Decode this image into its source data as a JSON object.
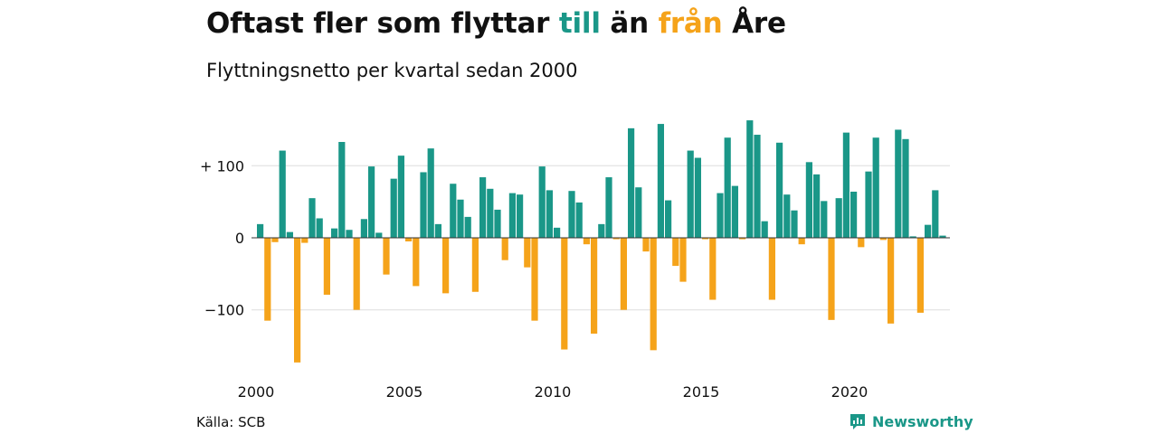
{
  "title": {
    "part1": "Oftast fler som flyttar ",
    "till": "till",
    "part2": " än ",
    "fran": "från",
    "part3": " Åre"
  },
  "subtitle": "Flyttningsnetto per kvartal sedan 2000",
  "source": "Källa: SCB",
  "brand": {
    "name": "Newsworthy",
    "icon": "newsworthy-logo-icon"
  },
  "colors": {
    "positive": "#1a9788",
    "negative": "#f5a31a",
    "grid": "#dddddd"
  },
  "chart_data": {
    "type": "bar",
    "start_year": 2000,
    "ylim": [
      -175,
      165
    ],
    "yticks": [
      {
        "value": 100,
        "label": "+ 100"
      },
      {
        "value": 0,
        "label": "0"
      },
      {
        "value": -100,
        "label": "−100"
      }
    ],
    "xticks": [
      {
        "year": 2000,
        "label": "2000"
      },
      {
        "year": 2005,
        "label": "2005"
      },
      {
        "year": 2010,
        "label": "2010"
      },
      {
        "year": 2015,
        "label": "2015"
      },
      {
        "year": 2020,
        "label": "2020"
      }
    ],
    "values": [
      19,
      -115,
      -6,
      121,
      8,
      -173,
      -7,
      55,
      27,
      -79,
      13,
      133,
      11,
      -100,
      26,
      99,
      7,
      -51,
      82,
      114,
      -5,
      -67,
      91,
      124,
      19,
      -77,
      75,
      53,
      29,
      -75,
      84,
      68,
      39,
      -31,
      62,
      60,
      -41,
      -115,
      99,
      66,
      14,
      -155,
      65,
      49,
      -9,
      -133,
      19,
      84,
      -2,
      -100,
      152,
      70,
      -19,
      -156,
      158,
      52,
      -39,
      -61,
      121,
      111,
      -2,
      -86,
      62,
      139,
      72,
      -2,
      163,
      143,
      23,
      -86,
      132,
      60,
      38,
      -9,
      105,
      88,
      51,
      -114,
      55,
      146,
      64,
      -13,
      92,
      139,
      -3,
      -119,
      150,
      137,
      2,
      -104,
      18,
      66,
      3
    ]
  }
}
